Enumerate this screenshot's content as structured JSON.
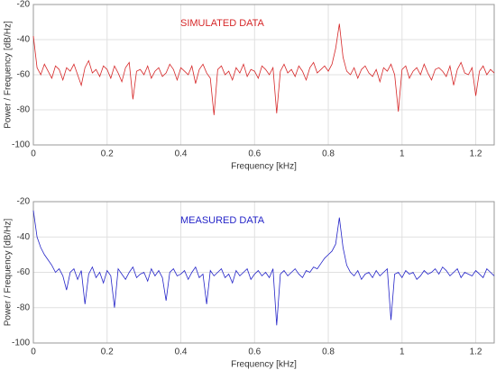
{
  "chart_data": [
    {
      "type": "line",
      "annotation": "SIMULATED DATA",
      "annotation_color": "#d62728",
      "xlabel": "Frequency [kHz]",
      "ylabel": "Power / Frequency [dB/Hz]",
      "xlim": [
        0,
        1.25
      ],
      "ylim": [
        -100,
        -20
      ],
      "xticks": [
        0,
        0.2,
        0.4,
        0.6,
        0.8,
        1,
        1.2
      ],
      "yticks": [
        -20,
        -40,
        -60,
        -80,
        -100
      ],
      "grid": true,
      "color": "#d62728",
      "x": [
        0,
        0.01,
        0.02,
        0.03,
        0.04,
        0.05,
        0.06,
        0.07,
        0.08,
        0.09,
        0.1,
        0.11,
        0.12,
        0.13,
        0.14,
        0.15,
        0.16,
        0.17,
        0.18,
        0.19,
        0.2,
        0.21,
        0.22,
        0.23,
        0.24,
        0.25,
        0.26,
        0.27,
        0.28,
        0.29,
        0.3,
        0.31,
        0.32,
        0.33,
        0.34,
        0.35,
        0.36,
        0.37,
        0.38,
        0.39,
        0.4,
        0.41,
        0.42,
        0.43,
        0.44,
        0.45,
        0.46,
        0.47,
        0.48,
        0.49,
        0.5,
        0.51,
        0.52,
        0.53,
        0.54,
        0.55,
        0.56,
        0.57,
        0.58,
        0.59,
        0.6,
        0.61,
        0.62,
        0.63,
        0.64,
        0.65,
        0.66,
        0.67,
        0.68,
        0.69,
        0.7,
        0.71,
        0.72,
        0.73,
        0.74,
        0.75,
        0.76,
        0.77,
        0.78,
        0.79,
        0.8,
        0.81,
        0.82,
        0.83,
        0.84,
        0.85,
        0.86,
        0.87,
        0.88,
        0.89,
        0.9,
        0.91,
        0.92,
        0.93,
        0.94,
        0.95,
        0.96,
        0.97,
        0.98,
        0.99,
        1,
        1.01,
        1.02,
        1.03,
        1.04,
        1.05,
        1.06,
        1.07,
        1.08,
        1.09,
        1.1,
        1.11,
        1.12,
        1.13,
        1.14,
        1.15,
        1.16,
        1.17,
        1.18,
        1.19,
        1.2,
        1.21,
        1.22,
        1.23,
        1.24,
        1.25
      ],
      "values": [
        -38,
        -56,
        -60,
        -54,
        -58,
        -62,
        -55,
        -57,
        -63,
        -56,
        -58,
        -54,
        -60,
        -66,
        -56,
        -52,
        -59,
        -57,
        -61,
        -55,
        -57,
        -62,
        -55,
        -59,
        -64,
        -56,
        -53,
        -74,
        -58,
        -57,
        -60,
        -55,
        -62,
        -58,
        -56,
        -61,
        -59,
        -54,
        -57,
        -63,
        -56,
        -58,
        -60,
        -55,
        -65,
        -57,
        -54,
        -59,
        -62,
        -83,
        -57,
        -55,
        -60,
        -58,
        -63,
        -56,
        -59,
        -54,
        -61,
        -57,
        -58,
        -62,
        -55,
        -57,
        -60,
        -56,
        -82,
        -58,
        -54,
        -59,
        -57,
        -61,
        -55,
        -58,
        -63,
        -56,
        -53,
        -59,
        -57,
        -55,
        -58,
        -54,
        -45,
        -31,
        -50,
        -58,
        -60,
        -56,
        -62,
        -57,
        -55,
        -59,
        -61,
        -57,
        -64,
        -56,
        -58,
        -54,
        -60,
        -81,
        -57,
        -55,
        -62,
        -58,
        -56,
        -60,
        -54,
        -59,
        -63,
        -57,
        -56,
        -58,
        -61,
        -55,
        -66,
        -57,
        -53,
        -59,
        -60,
        -56,
        -72,
        -58,
        -55,
        -60,
        -57,
        -59
      ]
    },
    {
      "type": "line",
      "annotation": "MEASURED DATA",
      "annotation_color": "#2424c8",
      "xlabel": "Frequency [kHz]",
      "ylabel": "Power / Frequency [dB/Hz]",
      "xlim": [
        0,
        1.25
      ],
      "ylim": [
        -100,
        -20
      ],
      "xticks": [
        0,
        0.2,
        0.4,
        0.6,
        0.8,
        1,
        1.2
      ],
      "yticks": [
        -20,
        -40,
        -60,
        -80,
        -100
      ],
      "grid": true,
      "color": "#2424c8",
      "x": [
        0,
        0.01,
        0.02,
        0.03,
        0.04,
        0.05,
        0.06,
        0.07,
        0.08,
        0.09,
        0.1,
        0.11,
        0.12,
        0.13,
        0.14,
        0.15,
        0.16,
        0.17,
        0.18,
        0.19,
        0.2,
        0.21,
        0.22,
        0.23,
        0.24,
        0.25,
        0.26,
        0.27,
        0.28,
        0.29,
        0.3,
        0.31,
        0.32,
        0.33,
        0.34,
        0.35,
        0.36,
        0.37,
        0.38,
        0.39,
        0.4,
        0.41,
        0.42,
        0.43,
        0.44,
        0.45,
        0.46,
        0.47,
        0.48,
        0.49,
        0.5,
        0.51,
        0.52,
        0.53,
        0.54,
        0.55,
        0.56,
        0.57,
        0.58,
        0.59,
        0.6,
        0.61,
        0.62,
        0.63,
        0.64,
        0.65,
        0.66,
        0.67,
        0.68,
        0.69,
        0.7,
        0.71,
        0.72,
        0.73,
        0.74,
        0.75,
        0.76,
        0.77,
        0.78,
        0.79,
        0.8,
        0.81,
        0.82,
        0.83,
        0.84,
        0.85,
        0.86,
        0.87,
        0.88,
        0.89,
        0.9,
        0.91,
        0.92,
        0.93,
        0.94,
        0.95,
        0.96,
        0.97,
        0.98,
        0.99,
        1,
        1.01,
        1.02,
        1.03,
        1.04,
        1.05,
        1.06,
        1.07,
        1.08,
        1.09,
        1.1,
        1.11,
        1.12,
        1.13,
        1.14,
        1.15,
        1.16,
        1.17,
        1.18,
        1.19,
        1.2,
        1.21,
        1.22,
        1.23,
        1.24,
        1.25
      ],
      "values": [
        -25,
        -40,
        -46,
        -50,
        -53,
        -56,
        -60,
        -58,
        -62,
        -70,
        -60,
        -58,
        -64,
        -59,
        -78,
        -61,
        -57,
        -63,
        -60,
        -66,
        -59,
        -62,
        -80,
        -58,
        -61,
        -64,
        -60,
        -57,
        -63,
        -61,
        -60,
        -65,
        -58,
        -62,
        -59,
        -63,
        -76,
        -60,
        -58,
        -62,
        -61,
        -59,
        -64,
        -60,
        -57,
        -63,
        -61,
        -78,
        -59,
        -62,
        -60,
        -58,
        -63,
        -61,
        -66,
        -59,
        -62,
        -60,
        -58,
        -64,
        -61,
        -59,
        -62,
        -60,
        -63,
        -58,
        -90,
        -61,
        -59,
        -62,
        -60,
        -58,
        -61,
        -63,
        -59,
        -60,
        -57,
        -58,
        -55,
        -52,
        -50,
        -48,
        -44,
        -29,
        -46,
        -56,
        -60,
        -62,
        -59,
        -64,
        -61,
        -60,
        -63,
        -59,
        -62,
        -60,
        -58,
        -87,
        -61,
        -60,
        -63,
        -59,
        -61,
        -60,
        -64,
        -62,
        -59,
        -61,
        -60,
        -58,
        -61,
        -57,
        -59,
        -62,
        -60,
        -58,
        -63,
        -60,
        -61,
        -62,
        -59,
        -61,
        -63,
        -58,
        -60,
        -62
      ]
    }
  ]
}
